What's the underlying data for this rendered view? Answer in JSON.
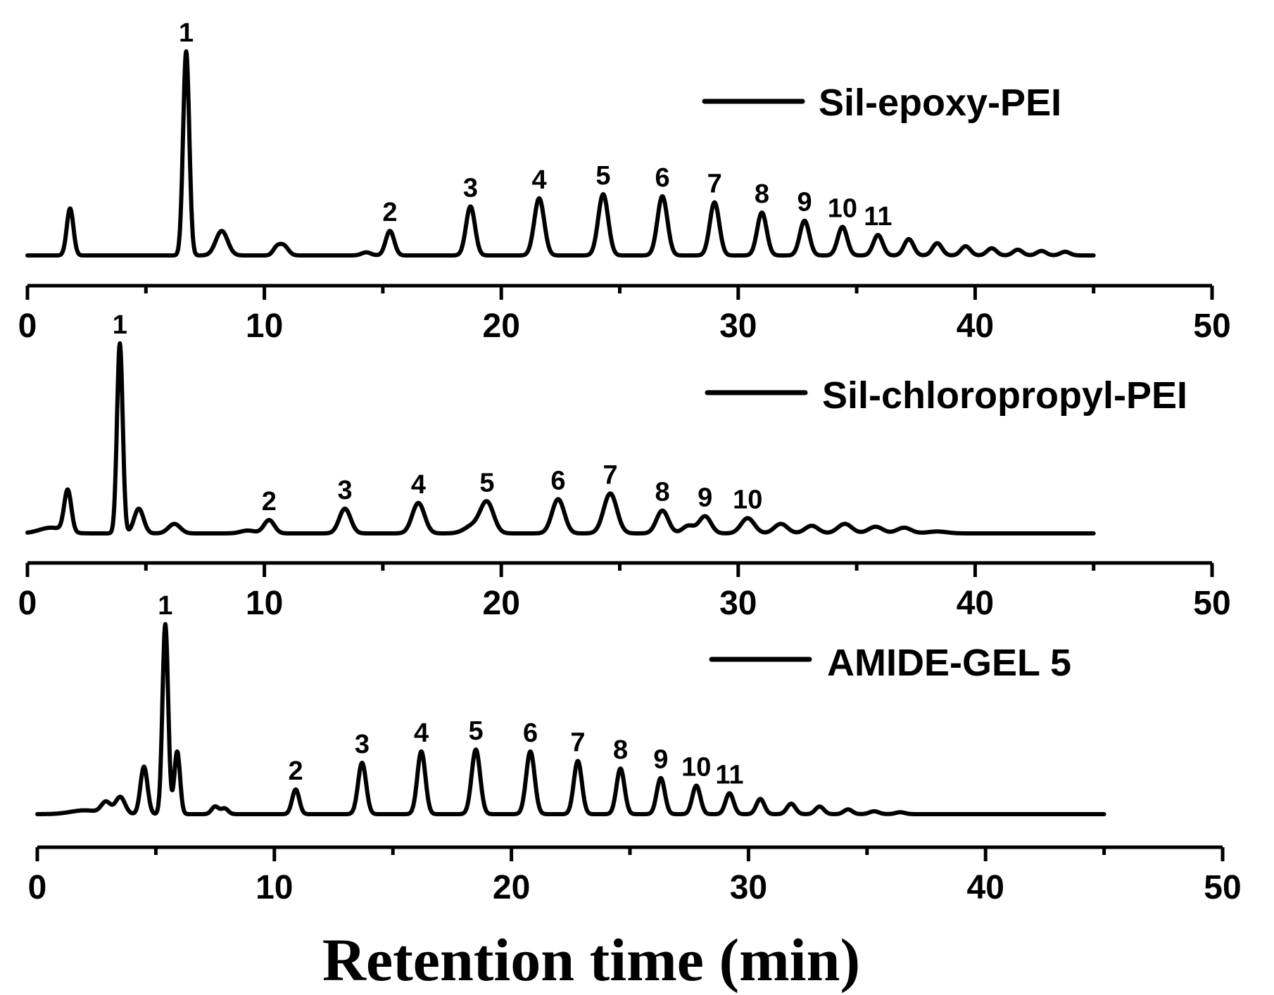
{
  "chart_data": [
    {
      "type": "line",
      "series_name": "Sil-epoxy-PEI",
      "xlim": [
        0,
        50
      ],
      "x_end": 45,
      "xticks": [
        "0",
        "10",
        "20",
        "30",
        "40",
        "50"
      ],
      "legend": "top-right",
      "peaks": [
        {
          "x": 1.8,
          "h": 0.23,
          "w": 0.14,
          "label": ""
        },
        {
          "x": 6.7,
          "h": 1.0,
          "w": 0.13,
          "label": "1"
        },
        {
          "x": 8.2,
          "h": 0.12,
          "w": 0.25,
          "label": ""
        },
        {
          "x": 10.5,
          "h": 0.03,
          "w": 0.15,
          "label": ""
        },
        {
          "x": 10.8,
          "h": 0.05,
          "w": 0.2,
          "label": ""
        },
        {
          "x": 14.3,
          "h": 0.015,
          "w": 0.2,
          "label": ""
        },
        {
          "x": 15.3,
          "h": 0.12,
          "w": 0.18,
          "label": "2"
        },
        {
          "x": 18.7,
          "h": 0.24,
          "w": 0.19,
          "label": "3"
        },
        {
          "x": 21.6,
          "h": 0.28,
          "w": 0.21,
          "label": "4"
        },
        {
          "x": 24.3,
          "h": 0.3,
          "w": 0.21,
          "label": "5"
        },
        {
          "x": 26.8,
          "h": 0.29,
          "w": 0.21,
          "label": "6"
        },
        {
          "x": 29.0,
          "h": 0.26,
          "w": 0.2,
          "label": "7"
        },
        {
          "x": 31.0,
          "h": 0.21,
          "w": 0.2,
          "label": "8"
        },
        {
          "x": 32.8,
          "h": 0.17,
          "w": 0.2,
          "label": "9"
        },
        {
          "x": 34.4,
          "h": 0.14,
          "w": 0.2,
          "label": "10"
        },
        {
          "x": 35.9,
          "h": 0.1,
          "w": 0.2,
          "label": "11"
        },
        {
          "x": 37.2,
          "h": 0.08,
          "w": 0.2,
          "label": ""
        },
        {
          "x": 38.4,
          "h": 0.06,
          "w": 0.2,
          "label": ""
        },
        {
          "x": 39.6,
          "h": 0.045,
          "w": 0.2,
          "label": ""
        },
        {
          "x": 40.7,
          "h": 0.035,
          "w": 0.2,
          "label": ""
        },
        {
          "x": 41.8,
          "h": 0.028,
          "w": 0.2,
          "label": ""
        },
        {
          "x": 42.8,
          "h": 0.022,
          "w": 0.2,
          "label": ""
        },
        {
          "x": 43.8,
          "h": 0.018,
          "w": 0.2,
          "label": ""
        }
      ]
    },
    {
      "type": "line",
      "series_name": "Sil-chloropropyl-PEI",
      "xlim": [
        0,
        50
      ],
      "x_end": 45,
      "xticks": [
        "0",
        "10",
        "20",
        "30",
        "40",
        "50"
      ],
      "legend": "top-right",
      "peaks": [
        {
          "x": 1.0,
          "h": 0.03,
          "w": 0.5,
          "label": ""
        },
        {
          "x": 1.7,
          "h": 0.22,
          "w": 0.15,
          "label": ""
        },
        {
          "x": 3.9,
          "h": 1.0,
          "w": 0.12,
          "label": "1"
        },
        {
          "x": 4.7,
          "h": 0.13,
          "w": 0.2,
          "label": ""
        },
        {
          "x": 6.2,
          "h": 0.05,
          "w": 0.25,
          "label": ""
        },
        {
          "x": 9.3,
          "h": 0.015,
          "w": 0.3,
          "label": ""
        },
        {
          "x": 10.2,
          "h": 0.07,
          "w": 0.22,
          "label": "2"
        },
        {
          "x": 13.4,
          "h": 0.13,
          "w": 0.24,
          "label": "3"
        },
        {
          "x": 16.5,
          "h": 0.16,
          "w": 0.26,
          "label": "4"
        },
        {
          "x": 18.8,
          "h": 0.04,
          "w": 0.35,
          "label": ""
        },
        {
          "x": 19.4,
          "h": 0.16,
          "w": 0.28,
          "label": "5"
        },
        {
          "x": 22.4,
          "h": 0.18,
          "w": 0.26,
          "label": "6"
        },
        {
          "x": 24.6,
          "h": 0.21,
          "w": 0.28,
          "label": "7"
        },
        {
          "x": 26.8,
          "h": 0.12,
          "w": 0.25,
          "label": "8"
        },
        {
          "x": 27.9,
          "h": 0.04,
          "w": 0.25,
          "label": ""
        },
        {
          "x": 28.6,
          "h": 0.09,
          "w": 0.25,
          "label": "9"
        },
        {
          "x": 30.4,
          "h": 0.08,
          "w": 0.28,
          "label": "10"
        },
        {
          "x": 31.8,
          "h": 0.05,
          "w": 0.28,
          "label": ""
        },
        {
          "x": 33.1,
          "h": 0.04,
          "w": 0.28,
          "label": ""
        },
        {
          "x": 34.5,
          "h": 0.05,
          "w": 0.3,
          "label": ""
        },
        {
          "x": 35.8,
          "h": 0.035,
          "w": 0.3,
          "label": ""
        },
        {
          "x": 37.0,
          "h": 0.03,
          "w": 0.3,
          "label": ""
        },
        {
          "x": 38.4,
          "h": 0.01,
          "w": 0.4,
          "label": ""
        }
      ]
    },
    {
      "type": "line",
      "series_name": "AMIDE-GEL 5",
      "xlim": [
        0,
        50
      ],
      "x_end": 45,
      "xticks": [
        "0",
        "10",
        "20",
        "30",
        "40",
        "50"
      ],
      "xlabel": "Retention time (min)",
      "legend": "top-right",
      "peaks": [
        {
          "x": 2.0,
          "h": 0.02,
          "w": 0.6,
          "label": ""
        },
        {
          "x": 2.9,
          "h": 0.06,
          "w": 0.2,
          "label": ""
        },
        {
          "x": 3.5,
          "h": 0.09,
          "w": 0.2,
          "label": ""
        },
        {
          "x": 4.5,
          "h": 0.25,
          "w": 0.15,
          "label": ""
        },
        {
          "x": 5.4,
          "h": 1.0,
          "w": 0.12,
          "label": "1"
        },
        {
          "x": 5.9,
          "h": 0.33,
          "w": 0.12,
          "label": ""
        },
        {
          "x": 7.5,
          "h": 0.04,
          "w": 0.15,
          "label": ""
        },
        {
          "x": 7.9,
          "h": 0.03,
          "w": 0.15,
          "label": ""
        },
        {
          "x": 10.9,
          "h": 0.13,
          "w": 0.15,
          "label": "2"
        },
        {
          "x": 13.7,
          "h": 0.27,
          "w": 0.17,
          "label": "3"
        },
        {
          "x": 16.2,
          "h": 0.33,
          "w": 0.17,
          "label": "4"
        },
        {
          "x": 18.5,
          "h": 0.34,
          "w": 0.18,
          "label": "5"
        },
        {
          "x": 20.8,
          "h": 0.33,
          "w": 0.18,
          "label": "6"
        },
        {
          "x": 22.8,
          "h": 0.28,
          "w": 0.17,
          "label": "7"
        },
        {
          "x": 24.6,
          "h": 0.24,
          "w": 0.17,
          "label": "8"
        },
        {
          "x": 26.3,
          "h": 0.19,
          "w": 0.17,
          "label": "9"
        },
        {
          "x": 27.8,
          "h": 0.15,
          "w": 0.17,
          "label": "10"
        },
        {
          "x": 29.2,
          "h": 0.11,
          "w": 0.17,
          "label": "11"
        },
        {
          "x": 30.5,
          "h": 0.08,
          "w": 0.17,
          "label": ""
        },
        {
          "x": 31.8,
          "h": 0.055,
          "w": 0.18,
          "label": ""
        },
        {
          "x": 33.0,
          "h": 0.04,
          "w": 0.18,
          "label": ""
        },
        {
          "x": 34.2,
          "h": 0.025,
          "w": 0.18,
          "label": ""
        },
        {
          "x": 35.3,
          "h": 0.015,
          "w": 0.2,
          "label": ""
        },
        {
          "x": 36.4,
          "h": 0.01,
          "w": 0.2,
          "label": ""
        }
      ]
    }
  ]
}
